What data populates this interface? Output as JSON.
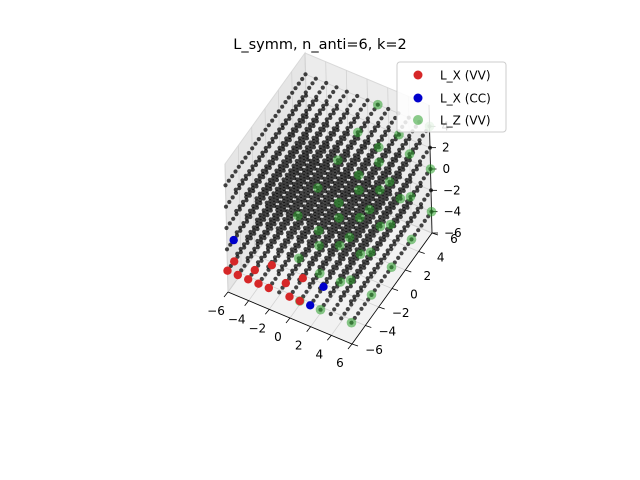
{
  "chart_data": {
    "type": "scatter",
    "title": "L_symm, n_anti=6, k=2",
    "projection": "3d",
    "grid": true,
    "legend": "top-right",
    "xlim": [
      -6,
      6
    ],
    "ylim": [
      -6,
      6
    ],
    "zlim": [
      -6,
      6
    ],
    "x_ticks": [
      "−6",
      "−4",
      "−2",
      "0",
      "2",
      "4",
      "6"
    ],
    "y_ticks": [
      "−6",
      "−4",
      "−2",
      "0",
      "2",
      "4",
      "6"
    ],
    "z_ticks": [
      "−6",
      "−4",
      "−2",
      "0",
      "2",
      "4"
    ],
    "lattice": {
      "color": "#000000",
      "x": [
        -6,
        -5,
        -4,
        -3,
        -2,
        -1,
        0,
        1,
        2,
        3,
        4,
        5,
        6
      ],
      "y_range": [
        -6,
        6
      ],
      "z_values": [
        -4,
        -2,
        0,
        2,
        4
      ]
    },
    "series": [
      {
        "name": "L_X (VV)",
        "color": "#d62728",
        "points": [
          {
            "x": -6,
            "y": -6,
            "z": -4
          },
          {
            "x": -6,
            "y": -5,
            "z": -4
          },
          {
            "x": -5,
            "y": -6,
            "z": -4
          },
          {
            "x": -4,
            "y": -6,
            "z": -4
          },
          {
            "x": -3,
            "y": -6,
            "z": -4
          },
          {
            "x": -4,
            "y": -5,
            "z": -4
          },
          {
            "x": -3,
            "y": -4,
            "z": -4
          },
          {
            "x": -2,
            "y": -6,
            "z": -4
          },
          {
            "x": -1,
            "y": -5,
            "z": -4
          },
          {
            "x": 0,
            "y": -4,
            "z": -4
          },
          {
            "x": 0,
            "y": -6,
            "z": -4
          },
          {
            "x": 1,
            "y": -6,
            "z": -4
          }
        ]
      },
      {
        "name": "L_X (CC)",
        "color": "#0000cc",
        "points": [
          {
            "x": -6,
            "y": -5,
            "z": -2
          },
          {
            "x": 2,
            "y": -6,
            "z": -4
          },
          {
            "x": 2,
            "y": -4,
            "z": -4
          }
        ]
      },
      {
        "name": "L_Z (VV)",
        "color": "#2ca02c",
        "points": [
          {
            "x": 1,
            "y": -6,
            "z": -4
          },
          {
            "x": 1,
            "y": -3,
            "z": -4
          },
          {
            "x": 1,
            "y": 0,
            "z": -4
          },
          {
            "x": 1,
            "y": 3,
            "z": -4
          },
          {
            "x": 1,
            "y": 6,
            "z": -4
          },
          {
            "x": 1,
            "y": -6,
            "z": 0
          },
          {
            "x": 1,
            "y": -3,
            "z": 0
          },
          {
            "x": 1,
            "y": 0,
            "z": 0
          },
          {
            "x": 1,
            "y": 3,
            "z": 0
          },
          {
            "x": 1,
            "y": 6,
            "z": 0
          },
          {
            "x": 1,
            "y": -6,
            "z": 4
          },
          {
            "x": 1,
            "y": -3,
            "z": 4
          },
          {
            "x": 1,
            "y": 0,
            "z": 4
          },
          {
            "x": 1,
            "y": 3,
            "z": 4
          },
          {
            "x": 1,
            "y": 6,
            "z": 4
          },
          {
            "x": 3,
            "y": -6,
            "z": -4
          },
          {
            "x": 3,
            "y": -3,
            "z": -4
          },
          {
            "x": 3,
            "y": 0,
            "z": -4
          },
          {
            "x": 3,
            "y": 3,
            "z": -4
          },
          {
            "x": 3,
            "y": 6,
            "z": -4
          },
          {
            "x": 3,
            "y": -6,
            "z": 2
          },
          {
            "x": 3,
            "y": -3,
            "z": 2
          },
          {
            "x": 3,
            "y": 0,
            "z": 2
          },
          {
            "x": 3,
            "y": 3,
            "z": 2
          },
          {
            "x": 3,
            "y": 6,
            "z": 2
          },
          {
            "x": 6,
            "y": -6,
            "z": -4
          },
          {
            "x": 6,
            "y": -3,
            "z": -4
          },
          {
            "x": 6,
            "y": 0,
            "z": -4
          },
          {
            "x": 6,
            "y": 3,
            "z": -4
          },
          {
            "x": 6,
            "y": 6,
            "z": -4
          },
          {
            "x": 6,
            "y": -6,
            "z": 0
          },
          {
            "x": 6,
            "y": -3,
            "z": 0
          },
          {
            "x": 6,
            "y": 0,
            "z": 0
          },
          {
            "x": 6,
            "y": 3,
            "z": 0
          },
          {
            "x": 6,
            "y": 6,
            "z": 0
          },
          {
            "x": 6,
            "y": -6,
            "z": 4
          },
          {
            "x": 6,
            "y": -3,
            "z": 4
          },
          {
            "x": 6,
            "y": 0,
            "z": 4
          },
          {
            "x": 6,
            "y": 3,
            "z": 4
          },
          {
            "x": 6,
            "y": 6,
            "z": 4
          }
        ]
      }
    ]
  }
}
